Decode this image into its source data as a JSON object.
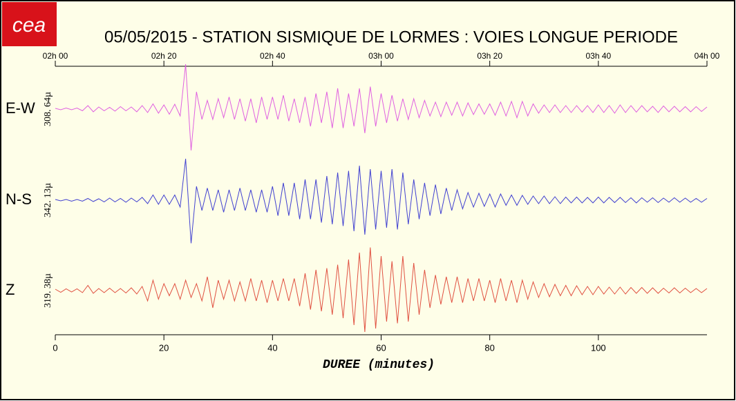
{
  "logo": "cea",
  "chart_data": {
    "type": "line",
    "title": "05/05/2015  -  STATION SISMIQUE DE LORMES : VOIES LONGUE PERIODE",
    "x_label": "DUREE (minutes)",
    "xlim": [
      0,
      120
    ],
    "xticks": [
      0,
      20,
      40,
      60,
      80,
      100
    ],
    "top_xticks": [
      {
        "value": 0,
        "label": "02h 00"
      },
      {
        "value": 20,
        "label": "02h 20"
      },
      {
        "value": 40,
        "label": "02h 40"
      },
      {
        "value": 60,
        "label": "03h 00"
      },
      {
        "value": 80,
        "label": "03h 20"
      },
      {
        "value": 100,
        "label": "03h 40"
      },
      {
        "value": 120,
        "label": "04h 00"
      }
    ],
    "x": [
      0,
      1,
      2,
      3,
      4,
      5,
      6,
      7,
      8,
      9,
      10,
      11,
      12,
      13,
      14,
      15,
      16,
      17,
      18,
      19,
      20,
      21,
      22,
      23,
      24,
      25,
      26,
      27,
      28,
      29,
      30,
      31,
      32,
      33,
      34,
      35,
      36,
      37,
      38,
      39,
      40,
      41,
      42,
      43,
      44,
      45,
      46,
      47,
      48,
      49,
      50,
      51,
      52,
      53,
      54,
      55,
      56,
      57,
      58,
      59,
      60,
      61,
      62,
      63,
      64,
      65,
      66,
      67,
      68,
      69,
      70,
      71,
      72,
      73,
      74,
      75,
      76,
      77,
      78,
      79,
      80,
      81,
      82,
      83,
      84,
      85,
      86,
      87,
      88,
      89,
      90,
      91,
      92,
      93,
      94,
      95,
      96,
      97,
      98,
      99,
      100,
      101,
      102,
      103,
      104,
      105,
      106,
      107,
      108,
      109,
      110,
      111,
      112,
      113,
      114,
      115,
      116,
      117,
      118,
      119,
      120
    ],
    "series": [
      {
        "name": "E-W",
        "scale_label": "308. 64µ",
        "color": "#e060e0",
        "ylim": [
          -1,
          1
        ],
        "values": [
          0.02,
          -0.02,
          0.03,
          -0.02,
          0.03,
          -0.05,
          0.1,
          -0.08,
          0.06,
          -0.05,
          0.05,
          -0.06,
          0.07,
          -0.05,
          0.06,
          -0.08,
          0.1,
          -0.1,
          0.15,
          -0.12,
          0.12,
          -0.15,
          0.14,
          -0.2,
          1.3,
          -1.2,
          0.5,
          -0.3,
          0.25,
          -0.3,
          0.3,
          -0.25,
          0.35,
          -0.3,
          0.3,
          -0.35,
          0.3,
          -0.4,
          0.35,
          -0.3,
          0.35,
          -0.3,
          0.4,
          -0.35,
          0.3,
          -0.4,
          0.35,
          -0.5,
          0.45,
          -0.4,
          0.5,
          -0.55,
          0.6,
          -0.55,
          0.45,
          -0.5,
          0.6,
          -0.7,
          0.65,
          -0.5,
          0.45,
          -0.4,
          0.4,
          -0.35,
          0.3,
          -0.3,
          0.3,
          -0.25,
          0.25,
          -0.2,
          0.2,
          -0.22,
          0.2,
          -0.18,
          0.2,
          -0.2,
          0.18,
          -0.16,
          0.15,
          -0.15,
          0.15,
          -0.18,
          0.2,
          -0.2,
          0.22,
          -0.25,
          0.22,
          -0.2,
          0.15,
          -0.12,
          0.12,
          -0.1,
          0.12,
          -0.1,
          0.1,
          -0.1,
          0.1,
          -0.09,
          0.1,
          -0.1,
          0.12,
          -0.1,
          0.1,
          -0.12,
          0.12,
          -0.1,
          0.1,
          -0.09,
          0.1,
          -0.08,
          0.08,
          -0.1,
          0.09,
          -0.08,
          0.08,
          -0.08,
          0.07,
          -0.08,
          0.07,
          -0.07,
          0.06
        ]
      },
      {
        "name": "N-S",
        "scale_label": "342. 13µ",
        "color": "#4040d0",
        "ylim": [
          -1,
          1
        ],
        "values": [
          0.02,
          -0.02,
          0.02,
          -0.03,
          0.02,
          -0.03,
          0.05,
          -0.04,
          0.04,
          -0.05,
          0.06,
          -0.05,
          0.05,
          -0.06,
          0.06,
          -0.05,
          0.08,
          -0.1,
          0.15,
          -0.12,
          0.15,
          -0.12,
          0.15,
          -0.2,
          1.2,
          -1.25,
          0.4,
          -0.3,
          0.35,
          -0.3,
          0.3,
          -0.35,
          0.3,
          -0.3,
          0.35,
          -0.3,
          0.3,
          -0.35,
          0.3,
          -0.35,
          0.4,
          -0.45,
          0.5,
          -0.45,
          0.5,
          -0.55,
          0.6,
          -0.55,
          0.6,
          -0.65,
          0.7,
          -0.7,
          0.8,
          -0.75,
          0.85,
          -0.9,
          1.0,
          -1.0,
          0.9,
          -0.85,
          0.85,
          -0.8,
          0.9,
          -0.85,
          0.8,
          -0.7,
          0.6,
          -0.55,
          0.5,
          -0.45,
          0.45,
          -0.4,
          0.35,
          -0.3,
          0.3,
          -0.25,
          0.22,
          -0.2,
          0.2,
          -0.18,
          0.18,
          -0.2,
          0.18,
          -0.15,
          0.15,
          -0.15,
          0.14,
          -0.12,
          0.12,
          -0.1,
          0.12,
          -0.1,
          0.1,
          -0.1,
          0.09,
          -0.08,
          0.09,
          -0.08,
          0.08,
          -0.08,
          0.09,
          -0.08,
          0.08,
          -0.07,
          0.08,
          -0.07,
          0.07,
          -0.08,
          0.07,
          -0.06,
          0.07,
          -0.07,
          0.06,
          -0.06,
          0.07,
          -0.06,
          0.06,
          -0.06,
          0.05,
          -0.06,
          0.05
        ]
      },
      {
        "name": "Z",
        "scale_label": "319. 38µ",
        "color": "#e05040",
        "ylim": [
          -1,
          1
        ],
        "values": [
          0.04,
          -0.05,
          0.05,
          -0.04,
          0.05,
          -0.06,
          0.15,
          -0.08,
          0.06,
          -0.06,
          0.07,
          -0.06,
          0.06,
          -0.07,
          0.08,
          -0.1,
          0.12,
          -0.3,
          0.3,
          -0.25,
          0.2,
          -0.15,
          0.2,
          -0.25,
          0.3,
          -0.2,
          0.2,
          -0.3,
          0.4,
          -0.5,
          0.3,
          -0.25,
          0.3,
          -0.3,
          0.25,
          -0.3,
          0.35,
          -0.3,
          0.3,
          -0.35,
          0.3,
          -0.3,
          0.35,
          -0.3,
          0.35,
          -0.45,
          0.5,
          -0.55,
          0.6,
          -0.6,
          0.65,
          -0.7,
          0.75,
          -0.8,
          0.9,
          -1.0,
          1.1,
          -1.2,
          1.25,
          -1.1,
          1.0,
          -0.9,
          0.85,
          -0.95,
          1.0,
          -0.9,
          0.8,
          -0.7,
          0.6,
          -0.5,
          0.45,
          -0.4,
          0.4,
          -0.35,
          0.4,
          -0.35,
          0.35,
          -0.3,
          0.35,
          -0.3,
          0.3,
          -0.35,
          0.35,
          -0.3,
          0.3,
          -0.35,
          0.3,
          -0.25,
          0.25,
          -0.2,
          0.2,
          -0.18,
          0.18,
          -0.15,
          0.15,
          -0.15,
          0.14,
          -0.12,
          0.12,
          -0.12,
          0.12,
          -0.1,
          0.1,
          -0.1,
          0.1,
          -0.1,
          0.09,
          -0.08,
          0.09,
          -0.08,
          0.08,
          -0.08,
          0.07,
          -0.07,
          0.08,
          -0.07,
          0.07,
          -0.06,
          0.06,
          -0.06,
          0.06
        ]
      }
    ]
  }
}
